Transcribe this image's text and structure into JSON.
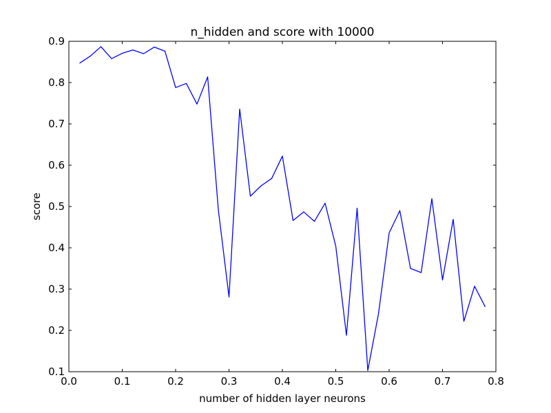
{
  "chart_data": {
    "type": "line",
    "title": "n_hidden and score with 10000",
    "xlabel": "number of hidden layer neurons",
    "ylabel": "score",
    "xlim": [
      0.0,
      0.8
    ],
    "ylim": [
      0.1,
      0.9
    ],
    "xticks": [
      "0.0",
      "0.1",
      "0.2",
      "0.3",
      "0.4",
      "0.5",
      "0.6",
      "0.7",
      "0.8"
    ],
    "yticks": [
      "0.1",
      "0.2",
      "0.3",
      "0.4",
      "0.5",
      "0.6",
      "0.7",
      "0.8",
      "0.9"
    ],
    "grid": false,
    "legend": "none",
    "series": [
      {
        "color": "#0000ff",
        "x": [
          0.02,
          0.04,
          0.06,
          0.08,
          0.1,
          0.12,
          0.14,
          0.16,
          0.18,
          0.2,
          0.22,
          0.24,
          0.26,
          0.28,
          0.3,
          0.32,
          0.34,
          0.36,
          0.38,
          0.4,
          0.42,
          0.44,
          0.46,
          0.48,
          0.5,
          0.52,
          0.54,
          0.56,
          0.58,
          0.6,
          0.62,
          0.64,
          0.66,
          0.68,
          0.7,
          0.72,
          0.74,
          0.76,
          0.78
        ],
        "y": [
          0.847,
          0.864,
          0.887,
          0.858,
          0.871,
          0.879,
          0.87,
          0.886,
          0.876,
          0.788,
          0.798,
          0.748,
          0.814,
          0.492,
          0.281,
          0.736,
          0.525,
          0.55,
          0.568,
          0.622,
          0.466,
          0.487,
          0.464,
          0.508,
          0.404,
          0.188,
          0.496,
          0.103,
          0.24,
          0.436,
          0.49,
          0.35,
          0.34,
          0.519,
          0.322,
          0.469,
          0.222,
          0.307,
          0.257
        ]
      }
    ]
  }
}
